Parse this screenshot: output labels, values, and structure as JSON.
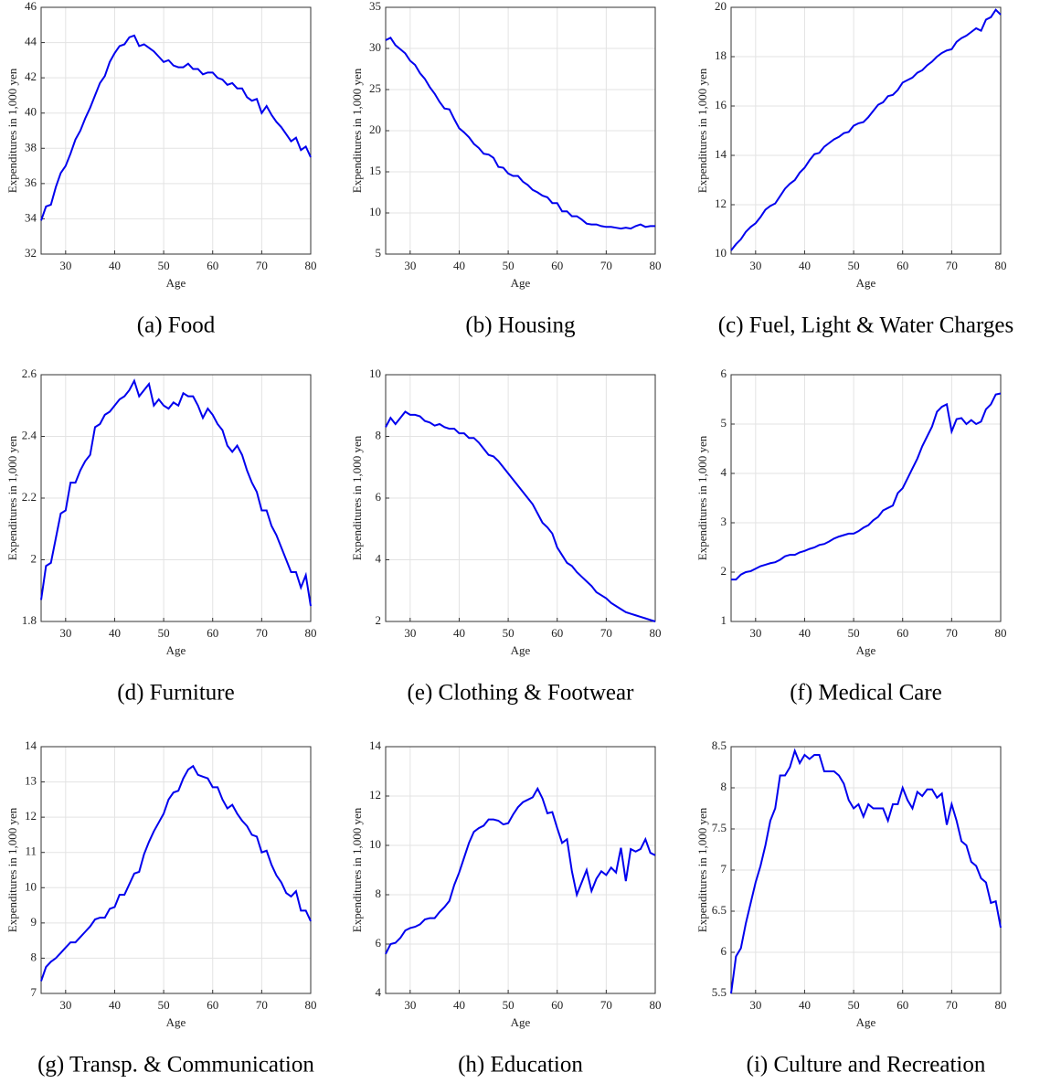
{
  "chart_data": [
    {
      "type": "line",
      "title": "(a) Food",
      "xlabel": "Age",
      "ylabel": "Expenditures in 1,000 yen",
      "color": "#0000ee",
      "grid": true,
      "xlim": [
        25,
        80
      ],
      "xticks": [
        30,
        40,
        50,
        60,
        70,
        80
      ],
      "ylim": [
        32,
        46
      ],
      "yticks": [
        32,
        34,
        36,
        38,
        40,
        42,
        44,
        46
      ],
      "x": [
        25,
        26,
        27,
        28,
        29,
        30,
        31,
        32,
        33,
        34,
        35,
        36,
        37,
        38,
        39,
        40,
        41,
        42,
        43,
        44,
        45,
        46,
        47,
        48,
        49,
        50,
        51,
        52,
        53,
        54,
        55,
        56,
        57,
        58,
        59,
        60,
        61,
        62,
        63,
        64,
        65,
        66,
        67,
        68,
        69,
        70,
        71,
        72,
        73,
        74,
        75,
        76,
        77,
        78,
        79,
        80
      ],
      "values": [
        33.9,
        34.7,
        34.8,
        35.8,
        36.6,
        37.0,
        37.7,
        38.5,
        39.0,
        39.7,
        40.3,
        41.0,
        41.7,
        42.1,
        42.9,
        43.4,
        43.8,
        43.9,
        44.3,
        44.4,
        43.8,
        43.9,
        43.7,
        43.5,
        43.2,
        42.9,
        43.0,
        42.7,
        42.6,
        42.6,
        42.8,
        42.5,
        42.5,
        42.2,
        42.3,
        42.3,
        42.0,
        41.9,
        41.6,
        41.7,
        41.4,
        41.4,
        40.9,
        40.7,
        40.8,
        40.0,
        40.4,
        39.9,
        39.5,
        39.2,
        38.8,
        38.4,
        38.6,
        37.9,
        38.1,
        37.5
      ]
    },
    {
      "type": "line",
      "title": "(b) Housing",
      "xlabel": "Age",
      "ylabel": "Expenditures in 1,000 yen",
      "color": "#0000ee",
      "grid": true,
      "xlim": [
        25,
        80
      ],
      "xticks": [
        30,
        40,
        50,
        60,
        70,
        80
      ],
      "ylim": [
        5,
        35
      ],
      "yticks": [
        5,
        10,
        15,
        20,
        25,
        30,
        35
      ],
      "x": [
        25,
        26,
        27,
        28,
        29,
        30,
        31,
        32,
        33,
        34,
        35,
        36,
        37,
        38,
        39,
        40,
        41,
        42,
        43,
        44,
        45,
        46,
        47,
        48,
        49,
        50,
        51,
        52,
        53,
        54,
        55,
        56,
        57,
        58,
        59,
        60,
        61,
        62,
        63,
        64,
        65,
        66,
        67,
        68,
        69,
        70,
        71,
        72,
        73,
        74,
        75,
        76,
        77,
        78,
        79,
        80
      ],
      "values": [
        31.0,
        31.3,
        30.4,
        29.9,
        29.4,
        28.5,
        28.0,
        27.0,
        26.3,
        25.3,
        24.5,
        23.5,
        22.7,
        22.6,
        21.4,
        20.3,
        19.8,
        19.2,
        18.4,
        17.9,
        17.2,
        17.1,
        16.7,
        15.6,
        15.5,
        14.8,
        14.5,
        14.5,
        13.8,
        13.4,
        12.8,
        12.5,
        12.1,
        11.9,
        11.2,
        11.2,
        10.2,
        10.2,
        9.6,
        9.6,
        9.2,
        8.7,
        8.6,
        8.6,
        8.4,
        8.3,
        8.3,
        8.2,
        8.1,
        8.2,
        8.1,
        8.4,
        8.6,
        8.3,
        8.4,
        8.4
      ]
    },
    {
      "type": "line",
      "title": "(c) Fuel, Light & Water Charges",
      "xlabel": "Age",
      "ylabel": "Expenditures in 1,000 yen",
      "color": "#0000ee",
      "grid": true,
      "xlim": [
        25,
        80
      ],
      "xticks": [
        30,
        40,
        50,
        60,
        70,
        80
      ],
      "ylim": [
        10,
        20
      ],
      "yticks": [
        10,
        12,
        14,
        16,
        18,
        20
      ],
      "x": [
        25,
        26,
        27,
        28,
        29,
        30,
        31,
        32,
        33,
        34,
        35,
        36,
        37,
        38,
        39,
        40,
        41,
        42,
        43,
        44,
        45,
        46,
        47,
        48,
        49,
        50,
        51,
        52,
        53,
        54,
        55,
        56,
        57,
        58,
        59,
        60,
        61,
        62,
        63,
        64,
        65,
        66,
        67,
        68,
        69,
        70,
        71,
        72,
        73,
        74,
        75,
        76,
        77,
        78,
        79,
        80
      ],
      "values": [
        10.15,
        10.4,
        10.6,
        10.9,
        11.1,
        11.25,
        11.5,
        11.8,
        11.95,
        12.05,
        12.35,
        12.65,
        12.85,
        13.0,
        13.3,
        13.5,
        13.8,
        14.05,
        14.1,
        14.35,
        14.5,
        14.65,
        14.75,
        14.9,
        14.95,
        15.2,
        15.3,
        15.35,
        15.55,
        15.8,
        16.05,
        16.15,
        16.4,
        16.45,
        16.65,
        16.95,
        17.05,
        17.15,
        17.35,
        17.45,
        17.65,
        17.8,
        18.0,
        18.15,
        18.25,
        18.3,
        18.6,
        18.75,
        18.85,
        19.0,
        19.15,
        19.05,
        19.5,
        19.6,
        19.9,
        19.7
      ]
    },
    {
      "type": "line",
      "title": "(d) Furniture",
      "xlabel": "Age",
      "ylabel": "Expenditures in 1,000 yen",
      "color": "#0000ee",
      "grid": true,
      "xlim": [
        25,
        80
      ],
      "xticks": [
        30,
        40,
        50,
        60,
        70,
        80
      ],
      "ylim": [
        1.8,
        2.6
      ],
      "yticks": [
        1.8,
        2,
        2.2,
        2.4,
        2.6
      ],
      "x": [
        25,
        26,
        27,
        28,
        29,
        30,
        31,
        32,
        33,
        34,
        35,
        36,
        37,
        38,
        39,
        40,
        41,
        42,
        43,
        44,
        45,
        46,
        47,
        48,
        49,
        50,
        51,
        52,
        53,
        54,
        55,
        56,
        57,
        58,
        59,
        60,
        61,
        62,
        63,
        64,
        65,
        66,
        67,
        68,
        69,
        70,
        71,
        72,
        73,
        74,
        75,
        76,
        77,
        78,
        79,
        80
      ],
      "values": [
        1.87,
        1.98,
        1.99,
        2.07,
        2.15,
        2.16,
        2.25,
        2.25,
        2.29,
        2.32,
        2.34,
        2.43,
        2.44,
        2.47,
        2.48,
        2.5,
        2.52,
        2.53,
        2.55,
        2.58,
        2.53,
        2.55,
        2.57,
        2.5,
        2.52,
        2.5,
        2.49,
        2.51,
        2.5,
        2.54,
        2.53,
        2.53,
        2.5,
        2.46,
        2.49,
        2.47,
        2.44,
        2.42,
        2.37,
        2.35,
        2.37,
        2.34,
        2.29,
        2.25,
        2.22,
        2.16,
        2.16,
        2.11,
        2.08,
        2.04,
        2.0,
        1.96,
        1.96,
        1.91,
        1.95,
        1.85
      ]
    },
    {
      "type": "line",
      "title": "(e) Clothing & Footwear",
      "xlabel": "Age",
      "ylabel": "Expenditures in 1,000 yen",
      "color": "#0000ee",
      "grid": true,
      "xlim": [
        25,
        80
      ],
      "xticks": [
        30,
        40,
        50,
        60,
        70,
        80
      ],
      "ylim": [
        2,
        10
      ],
      "yticks": [
        2,
        4,
        6,
        8,
        10
      ],
      "x": [
        25,
        26,
        27,
        28,
        29,
        30,
        31,
        32,
        33,
        34,
        35,
        36,
        37,
        38,
        39,
        40,
        41,
        42,
        43,
        44,
        45,
        46,
        47,
        48,
        49,
        50,
        51,
        52,
        53,
        54,
        55,
        56,
        57,
        58,
        59,
        60,
        61,
        62,
        63,
        64,
        65,
        66,
        67,
        68,
        69,
        70,
        71,
        72,
        73,
        74,
        75,
        76,
        77,
        78,
        79,
        80
      ],
      "values": [
        8.3,
        8.6,
        8.4,
        8.6,
        8.8,
        8.7,
        8.7,
        8.65,
        8.5,
        8.45,
        8.35,
        8.4,
        8.3,
        8.25,
        8.25,
        8.1,
        8.1,
        7.95,
        7.95,
        7.8,
        7.6,
        7.4,
        7.35,
        7.2,
        7.0,
        6.8,
        6.6,
        6.4,
        6.2,
        6.0,
        5.8,
        5.5,
        5.2,
        5.05,
        4.85,
        4.4,
        4.15,
        3.9,
        3.8,
        3.6,
        3.45,
        3.3,
        3.15,
        2.95,
        2.85,
        2.75,
        2.6,
        2.5,
        2.4,
        2.3,
        2.25,
        2.2,
        2.15,
        2.1,
        2.05,
        2.0
      ]
    },
    {
      "type": "line",
      "title": "(f) Medical Care",
      "xlabel": "Age",
      "ylabel": "Expenditures in 1,000 yen",
      "color": "#0000ee",
      "grid": true,
      "xlim": [
        25,
        80
      ],
      "xticks": [
        30,
        40,
        50,
        60,
        70,
        80
      ],
      "ylim": [
        1,
        6
      ],
      "yticks": [
        1,
        2,
        3,
        4,
        5,
        6
      ],
      "x": [
        25,
        26,
        27,
        28,
        29,
        30,
        31,
        32,
        33,
        34,
        35,
        36,
        37,
        38,
        39,
        40,
        41,
        42,
        43,
        44,
        45,
        46,
        47,
        48,
        49,
        50,
        51,
        52,
        53,
        54,
        55,
        56,
        57,
        58,
        59,
        60,
        61,
        62,
        63,
        64,
        65,
        66,
        67,
        68,
        69,
        70,
        71,
        72,
        73,
        74,
        75,
        76,
        77,
        78,
        79,
        80
      ],
      "values": [
        1.85,
        1.85,
        1.95,
        2.0,
        2.02,
        2.07,
        2.12,
        2.15,
        2.18,
        2.2,
        2.25,
        2.32,
        2.35,
        2.35,
        2.4,
        2.43,
        2.47,
        2.5,
        2.55,
        2.57,
        2.62,
        2.68,
        2.72,
        2.75,
        2.78,
        2.78,
        2.83,
        2.9,
        2.95,
        3.05,
        3.12,
        3.25,
        3.3,
        3.35,
        3.6,
        3.7,
        3.9,
        4.1,
        4.3,
        4.55,
        4.75,
        4.95,
        5.25,
        5.35,
        5.4,
        4.85,
        5.1,
        5.12,
        5.0,
        5.08,
        5.0,
        5.05,
        5.3,
        5.4,
        5.6,
        5.62
      ]
    },
    {
      "type": "line",
      "title": "(g) Transp. & Communication",
      "xlabel": "Age",
      "ylabel": "Expenditures in 1,000 yen",
      "color": "#0000ee",
      "grid": true,
      "xlim": [
        25,
        80
      ],
      "xticks": [
        30,
        40,
        50,
        60,
        70,
        80
      ],
      "ylim": [
        7,
        14
      ],
      "yticks": [
        7,
        8,
        9,
        10,
        11,
        12,
        13,
        14
      ],
      "x": [
        25,
        26,
        27,
        28,
        29,
        30,
        31,
        32,
        33,
        34,
        35,
        36,
        37,
        38,
        39,
        40,
        41,
        42,
        43,
        44,
        45,
        46,
        47,
        48,
        49,
        50,
        51,
        52,
        53,
        54,
        55,
        56,
        57,
        58,
        59,
        60,
        61,
        62,
        63,
        64,
        65,
        66,
        67,
        68,
        69,
        70,
        71,
        72,
        73,
        74,
        75,
        76,
        77,
        78,
        79,
        80
      ],
      "values": [
        7.35,
        7.75,
        7.9,
        8.0,
        8.15,
        8.3,
        8.45,
        8.45,
        8.6,
        8.75,
        8.9,
        9.1,
        9.15,
        9.15,
        9.4,
        9.45,
        9.8,
        9.8,
        10.1,
        10.4,
        10.45,
        10.95,
        11.3,
        11.6,
        11.85,
        12.1,
        12.5,
        12.7,
        12.75,
        13.1,
        13.35,
        13.45,
        13.2,
        13.15,
        13.1,
        12.85,
        12.85,
        12.5,
        12.25,
        12.35,
        12.1,
        11.9,
        11.75,
        11.5,
        11.45,
        11.0,
        11.05,
        10.65,
        10.35,
        10.15,
        9.85,
        9.75,
        9.9,
        9.35,
        9.35,
        9.05
      ]
    },
    {
      "type": "line",
      "title": "(h) Education",
      "xlabel": "Age",
      "ylabel": "Expenditures in 1,000 yen",
      "color": "#0000ee",
      "grid": true,
      "xlim": [
        25,
        80
      ],
      "xticks": [
        30,
        40,
        50,
        60,
        70,
        80
      ],
      "ylim": [
        4,
        14
      ],
      "yticks": [
        4,
        6,
        8,
        10,
        12,
        14
      ],
      "x": [
        25,
        26,
        27,
        28,
        29,
        30,
        31,
        32,
        33,
        34,
        35,
        36,
        37,
        38,
        39,
        40,
        41,
        42,
        43,
        44,
        45,
        46,
        47,
        48,
        49,
        50,
        51,
        52,
        53,
        54,
        55,
        56,
        57,
        58,
        59,
        60,
        61,
        62,
        63,
        64,
        65,
        66,
        67,
        68,
        69,
        70,
        71,
        72,
        73,
        74,
        75,
        76,
        77,
        78,
        79,
        80
      ],
      "values": [
        5.6,
        6.0,
        6.05,
        6.25,
        6.55,
        6.65,
        6.7,
        6.8,
        7.0,
        7.05,
        7.05,
        7.3,
        7.5,
        7.75,
        8.4,
        8.9,
        9.5,
        10.1,
        10.55,
        10.7,
        10.8,
        11.05,
        11.05,
        11.0,
        10.85,
        10.9,
        11.25,
        11.55,
        11.75,
        11.85,
        11.95,
        12.3,
        11.9,
        11.3,
        11.35,
        10.7,
        10.1,
        10.25,
        8.95,
        8.0,
        8.5,
        9.0,
        8.15,
        8.65,
        8.95,
        8.8,
        9.1,
        8.9,
        9.9,
        8.55,
        9.85,
        9.75,
        9.85,
        10.25,
        9.7,
        9.6
      ]
    },
    {
      "type": "line",
      "title": "(i) Culture and Recreation",
      "xlabel": "Age",
      "ylabel": "Expenditures in 1,000 yen",
      "color": "#0000ee",
      "grid": true,
      "xlim": [
        25,
        80
      ],
      "xticks": [
        30,
        40,
        50,
        60,
        70,
        80
      ],
      "ylim": [
        5.5,
        8.5
      ],
      "yticks": [
        5.5,
        6,
        6.5,
        7,
        7.5,
        8,
        8.5
      ],
      "x": [
        25,
        26,
        27,
        28,
        29,
        30,
        31,
        32,
        33,
        34,
        35,
        36,
        37,
        38,
        39,
        40,
        41,
        42,
        43,
        44,
        45,
        46,
        47,
        48,
        49,
        50,
        51,
        52,
        53,
        54,
        55,
        56,
        57,
        58,
        59,
        60,
        61,
        62,
        63,
        64,
        65,
        66,
        67,
        68,
        69,
        70,
        71,
        72,
        73,
        74,
        75,
        76,
        77,
        78,
        79,
        80
      ],
      "values": [
        5.5,
        5.95,
        6.05,
        6.35,
        6.6,
        6.85,
        7.05,
        7.3,
        7.6,
        7.75,
        8.15,
        8.15,
        8.25,
        8.45,
        8.3,
        8.4,
        8.35,
        8.4,
        8.4,
        8.2,
        8.2,
        8.2,
        8.15,
        8.05,
        7.85,
        7.75,
        7.8,
        7.65,
        7.8,
        7.75,
        7.75,
        7.75,
        7.6,
        7.8,
        7.8,
        8.0,
        7.85,
        7.75,
        7.95,
        7.9,
        7.98,
        7.98,
        7.88,
        7.93,
        7.55,
        7.8,
        7.6,
        7.35,
        7.3,
        7.1,
        7.05,
        6.9,
        6.85,
        6.6,
        6.62,
        6.3
      ]
    }
  ]
}
